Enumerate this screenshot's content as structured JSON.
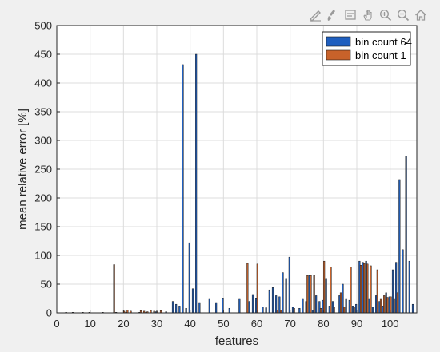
{
  "toolbar": {
    "icons": [
      "edit-plot-icon",
      "brush-icon",
      "data-tips-icon",
      "pan-hand-icon",
      "zoom-in-icon",
      "zoom-out-icon",
      "home-icon"
    ]
  },
  "chart_data": {
    "type": "bar",
    "title": "",
    "xlabel": "features",
    "ylabel": "mean relative error [%]",
    "xlim": [
      0,
      108
    ],
    "ylim": [
      0,
      500
    ],
    "xticks": [
      0,
      10,
      20,
      30,
      40,
      50,
      60,
      70,
      80,
      90,
      100
    ],
    "yticks": [
      0,
      50,
      100,
      150,
      200,
      250,
      300,
      350,
      400,
      450,
      500
    ],
    "grid": true,
    "legend_position": "top-right",
    "series": [
      {
        "name": "bin count 64",
        "color": "#1f5fbf",
        "x": [
          3,
          5,
          8,
          10,
          14,
          18,
          21,
          25,
          27,
          30,
          33,
          35,
          36,
          37,
          38,
          39,
          40,
          41,
          42,
          43,
          46,
          48,
          50,
          52,
          55,
          58,
          59,
          60,
          62,
          63,
          64,
          65,
          66,
          67,
          68,
          69,
          70,
          71,
          73,
          74,
          75,
          76,
          77,
          78,
          79,
          80,
          81,
          82,
          83,
          85,
          86,
          87,
          88,
          89,
          90,
          91,
          92,
          93,
          94,
          95,
          96,
          97,
          98,
          99,
          100,
          101,
          102,
          103,
          104,
          105,
          106,
          107
        ],
        "values": [
          1,
          1,
          1,
          1,
          1,
          1,
          1,
          1,
          1,
          2,
          2,
          20,
          15,
          12,
          432,
          8,
          122,
          42,
          450,
          18,
          25,
          18,
          26,
          8,
          25,
          20,
          32,
          26,
          10,
          9,
          40,
          44,
          30,
          28,
          70,
          60,
          97,
          10,
          8,
          25,
          20,
          65,
          5,
          30,
          20,
          22,
          60,
          12,
          20,
          30,
          50,
          25,
          22,
          12,
          15,
          90,
          88,
          90,
          25,
          10,
          30,
          20,
          12,
          35,
          28,
          75,
          88,
          232,
          110,
          273,
          90,
          15
        ],
        "note": ""
      },
      {
        "name": "bin count 1",
        "color": "#c8622a",
        "x": [
          17,
          20,
          21,
          22,
          25,
          26,
          27,
          28,
          29,
          30,
          31,
          57,
          60,
          66,
          67,
          71,
          75,
          76,
          77,
          79,
          80,
          82,
          83,
          85,
          86,
          88,
          89,
          91,
          92,
          93,
          94,
          96,
          97,
          98,
          99,
          100,
          101,
          102
        ],
        "values": [
          84,
          3,
          5,
          3,
          4,
          3,
          2,
          4,
          3,
          2,
          4,
          86,
          85,
          5,
          5,
          8,
          65,
          65,
          65,
          8,
          90,
          80,
          10,
          35,
          10,
          80,
          10,
          83,
          86,
          85,
          82,
          75,
          25,
          30,
          27,
          28,
          25,
          35
        ]
      }
    ]
  }
}
